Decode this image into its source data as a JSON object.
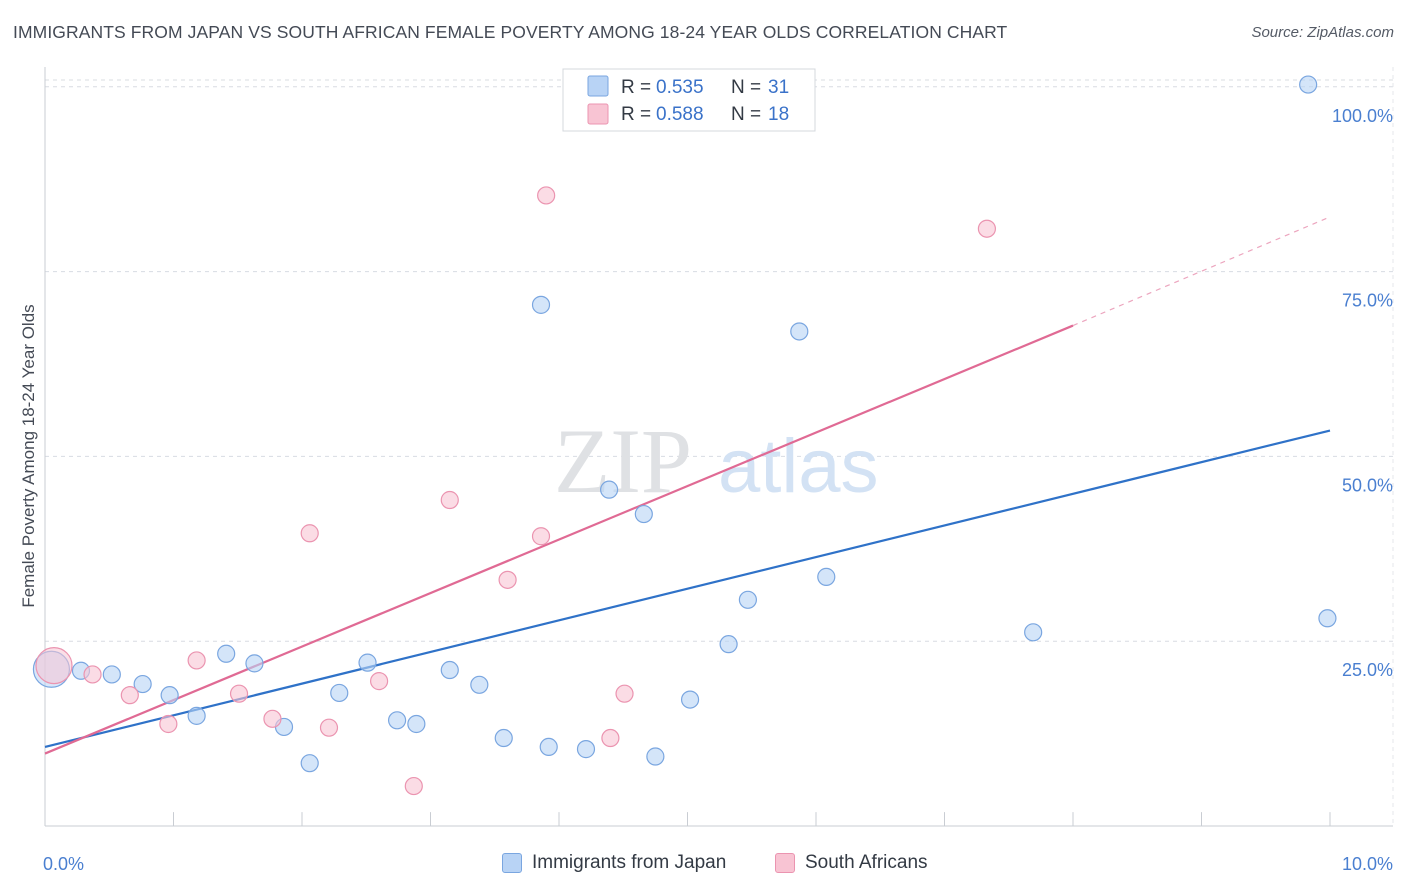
{
  "title": "IMMIGRANTS FROM JAPAN VS SOUTH AFRICAN FEMALE POVERTY AMONG 18-24 YEAR OLDS CORRELATION CHART",
  "source": "Source: ZipAtlas.com",
  "watermark": {
    "zip": "ZIP",
    "atlas": "atlas"
  },
  "colors": {
    "japan_fill": "#b8d3f5",
    "japan_stroke": "#7aa6e0",
    "japan_line": "#2f72c8",
    "sa_fill": "#f8c4d3",
    "sa_stroke": "#eb94b0",
    "sa_line": "#e06a94",
    "tick_text": "#4a7fd0",
    "grid": "#d8dce2"
  },
  "legend_top": {
    "rows": [
      {
        "r_label": "R =",
        "r_value": "0.535",
        "n_label": "N =",
        "n_value": "31"
      },
      {
        "r_label": "R =",
        "r_value": "0.588",
        "n_label": "N =",
        "n_value": "18"
      }
    ]
  },
  "legend_bottom": {
    "japan": "Immigrants from Japan",
    "sa": "South Africans"
  },
  "chart_data": {
    "type": "scatter",
    "title": "IMMIGRANTS FROM JAPAN VS SOUTH AFRICAN FEMALE POVERTY AMONG 18-24 YEAR OLDS CORRELATION CHART",
    "xlabel": "",
    "ylabel": "Female Poverty Among 18-24 Year Olds",
    "xlim": [
      0,
      10
    ],
    "ylim": [
      0,
      102
    ],
    "x_ticks": [
      {
        "value": 0,
        "label": "0.0%"
      },
      {
        "value": 10,
        "label": "10.0%"
      }
    ],
    "y_ticks": [
      {
        "value": 25,
        "label": "25.0%"
      },
      {
        "value": 50,
        "label": "50.0%"
      },
      {
        "value": 75,
        "label": "75.0%"
      },
      {
        "value": 100,
        "label": "100.0%"
      }
    ],
    "grid": true,
    "legend_position": "top-center",
    "series": [
      {
        "name": "Immigrants from Japan",
        "r": 0.535,
        "n": 31,
        "points": [
          {
            "x": 0.05,
            "y": 21.2,
            "big": true
          },
          {
            "x": 0.28,
            "y": 21.0
          },
          {
            "x": 0.52,
            "y": 20.5
          },
          {
            "x": 0.76,
            "y": 19.2
          },
          {
            "x": 0.97,
            "y": 17.7
          },
          {
            "x": 1.18,
            "y": 14.9
          },
          {
            "x": 1.41,
            "y": 23.3
          },
          {
            "x": 1.63,
            "y": 22.0
          },
          {
            "x": 1.86,
            "y": 13.4
          },
          {
            "x": 2.06,
            "y": 8.5
          },
          {
            "x": 2.29,
            "y": 18.0
          },
          {
            "x": 2.51,
            "y": 22.1
          },
          {
            "x": 2.74,
            "y": 14.3
          },
          {
            "x": 2.89,
            "y": 13.8
          },
          {
            "x": 3.15,
            "y": 21.1
          },
          {
            "x": 3.38,
            "y": 19.1
          },
          {
            "x": 3.57,
            "y": 11.9
          },
          {
            "x": 3.86,
            "y": 70.5
          },
          {
            "x": 3.92,
            "y": 10.7
          },
          {
            "x": 4.21,
            "y": 10.4
          },
          {
            "x": 4.39,
            "y": 45.5
          },
          {
            "x": 4.66,
            "y": 42.2
          },
          {
            "x": 4.75,
            "y": 9.4
          },
          {
            "x": 5.02,
            "y": 17.1
          },
          {
            "x": 5.32,
            "y": 24.6
          },
          {
            "x": 5.47,
            "y": 30.6
          },
          {
            "x": 5.87,
            "y": 66.9
          },
          {
            "x": 6.08,
            "y": 33.7
          },
          {
            "x": 7.69,
            "y": 26.2
          },
          {
            "x": 9.83,
            "y": 100.3
          },
          {
            "x": 9.98,
            "y": 28.1
          }
        ],
        "trend": {
          "x0": 0,
          "y0": 10.7,
          "x1": 10,
          "y1": 53.5
        }
      },
      {
        "name": "South Africans",
        "r": 0.588,
        "n": 18,
        "points": [
          {
            "x": 0.07,
            "y": 21.7,
            "big": true
          },
          {
            "x": 0.37,
            "y": 20.5
          },
          {
            "x": 0.66,
            "y": 17.7
          },
          {
            "x": 0.96,
            "y": 13.8
          },
          {
            "x": 1.18,
            "y": 22.4
          },
          {
            "x": 1.51,
            "y": 17.9
          },
          {
            "x": 1.77,
            "y": 14.5
          },
          {
            "x": 2.06,
            "y": 39.6
          },
          {
            "x": 2.21,
            "y": 13.3
          },
          {
            "x": 2.6,
            "y": 19.6
          },
          {
            "x": 2.87,
            "y": 5.4
          },
          {
            "x": 3.15,
            "y": 44.1
          },
          {
            "x": 3.6,
            "y": 33.3
          },
          {
            "x": 3.86,
            "y": 39.2
          },
          {
            "x": 3.9,
            "y": 85.3
          },
          {
            "x": 4.4,
            "y": 11.9
          },
          {
            "x": 4.51,
            "y": 17.9
          },
          {
            "x": 7.33,
            "y": 80.8
          }
        ],
        "trend": {
          "x0": 0,
          "y0": 9.8,
          "x1": 8,
          "y1": 67.7,
          "dashed_to": {
            "x": 10,
            "y": 82.4
          }
        }
      }
    ]
  }
}
